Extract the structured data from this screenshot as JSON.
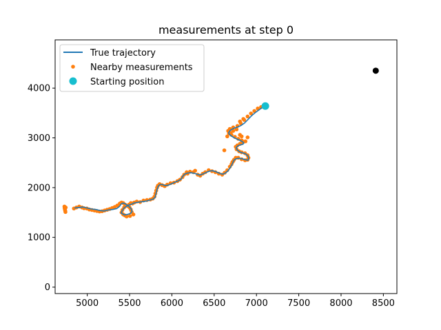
{
  "chart_data": {
    "type": "scatter",
    "title": "measurements at step 0",
    "xlabel": "",
    "ylabel": "",
    "xlim": [
      4620,
      8660
    ],
    "ylim": [
      -130,
      4970
    ],
    "x_ticks": [
      5000,
      5500,
      6000,
      6500,
      7000,
      7500,
      8000,
      8500
    ],
    "y_ticks": [
      0,
      1000,
      2000,
      3000,
      4000
    ],
    "grid": false,
    "legend_position": "top-left",
    "colors": {
      "trajectory": "#1f77b4",
      "measurements": "#ff7f0e",
      "start": "#17becf",
      "target": "#000000"
    },
    "series": [
      {
        "name": "True trajectory",
        "kind": "line",
        "x": [
          4850,
          4900,
          4950,
          5000,
          5050,
          5100,
          5150,
          5200,
          5250,
          5300,
          5350,
          5380,
          5400,
          5420,
          5440,
          5470,
          5500,
          5520,
          5530,
          5510,
          5470,
          5440,
          5420,
          5400,
          5410,
          5430,
          5460,
          5490,
          5510,
          5530,
          5550,
          5580,
          5620,
          5660,
          5700,
          5740,
          5780,
          5800,
          5810,
          5820,
          5830,
          5840,
          5860,
          5890,
          5920,
          5960,
          6000,
          6040,
          6080,
          6110,
          6130,
          6150,
          6180,
          6220,
          6260,
          6300,
          6330,
          6360,
          6400,
          6440,
          6480,
          6520,
          6560,
          6600,
          6630,
          6660,
          6690,
          6710,
          6720,
          6730,
          6740,
          6760,
          6790,
          6830,
          6870,
          6900,
          6910,
          6900,
          6870,
          6830,
          6800,
          6770,
          6760,
          6780,
          6810,
          6840,
          6850,
          6830,
          6790,
          6750,
          6710,
          6680,
          6670,
          6690,
          6730,
          6780,
          6820,
          6860,
          6900,
          6940,
          6980,
          7020,
          7060,
          7100
        ],
        "y": [
          1590,
          1600,
          1610,
          1590,
          1570,
          1560,
          1540,
          1530,
          1550,
          1560,
          1580,
          1620,
          1670,
          1690,
          1680,
          1650,
          1610,
          1570,
          1520,
          1480,
          1460,
          1450,
          1470,
          1490,
          1530,
          1580,
          1620,
          1650,
          1660,
          1670,
          1690,
          1700,
          1710,
          1720,
          1730,
          1750,
          1770,
          1800,
          1860,
          1930,
          1990,
          2030,
          2060,
          2060,
          2040,
          2050,
          2080,
          2110,
          2140,
          2170,
          2230,
          2270,
          2290,
          2300,
          2290,
          2270,
          2250,
          2270,
          2300,
          2330,
          2340,
          2320,
          2290,
          2270,
          2290,
          2330,
          2400,
          2460,
          2500,
          2540,
          2560,
          2580,
          2590,
          2580,
          2560,
          2550,
          2590,
          2640,
          2680,
          2700,
          2720,
          2760,
          2800,
          2840,
          2860,
          2870,
          2900,
          2930,
          2960,
          2990,
          3030,
          3070,
          3100,
          3150,
          3190,
          3220,
          3250,
          3300,
          3370,
          3440,
          3500,
          3550,
          3600,
          3640
        ]
      },
      {
        "name": "Nearby measurements",
        "kind": "scatter",
        "x": [
          4730,
          4732,
          4735,
          4737,
          4740,
          4742,
          4745,
          4842,
          4872,
          4905,
          4938,
          4962,
          4995,
          5025,
          5055,
          5085,
          5115,
          5145,
          5175,
          5205,
          5235,
          5265,
          5295,
          5325,
          5355,
          5385,
          5405,
          5425,
          5445,
          5475,
          5500,
          5515,
          5525,
          5545,
          5505,
          5465,
          5445,
          5425,
          5405,
          5415,
          5435,
          5465,
          5495,
          5515,
          5535,
          5555,
          5585,
          5625,
          5665,
          5705,
          5745,
          5775,
          5795,
          5805,
          5815,
          5825,
          5835,
          5855,
          5885,
          5915,
          5945,
          5985,
          6025,
          6065,
          6095,
          6125,
          6145,
          6175,
          6185,
          6215,
          6255,
          6275,
          6305,
          6335,
          6365,
          6395,
          6435,
          6475,
          6515,
          6555,
          6595,
          6625,
          6655,
          6685,
          6705,
          6715,
          6725,
          6735,
          6755,
          6785,
          6825,
          6865,
          6895,
          6905,
          6895,
          6865,
          6825,
          6795,
          6765,
          6755,
          6775,
          6805,
          6835,
          6845,
          6825,
          6785,
          6745,
          6705,
          6675,
          6665,
          6685,
          6725,
          6775,
          6815,
          6855,
          6895,
          6935,
          6975,
          7015,
          7055,
          7085,
          6620,
          6655,
          6695,
          6725,
          6765,
          6805,
          6845,
          6805,
          6825,
          6870,
          6895
        ],
        "y": [
          1620,
          1590,
          1570,
          1550,
          1530,
          1510,
          1600,
          1580,
          1600,
          1620,
          1600,
          1585,
          1580,
          1560,
          1550,
          1540,
          1530,
          1520,
          1525,
          1540,
          1555,
          1570,
          1590,
          1610,
          1640,
          1680,
          1700,
          1690,
          1660,
          1630,
          1600,
          1560,
          1510,
          1460,
          1430,
          1420,
          1440,
          1460,
          1500,
          1550,
          1600,
          1640,
          1660,
          1690,
          1680,
          1700,
          1720,
          1710,
          1740,
          1750,
          1760,
          1780,
          1820,
          1880,
          1940,
          2000,
          2040,
          2070,
          2050,
          2030,
          2060,
          2090,
          2100,
          2130,
          2160,
          2210,
          2260,
          2310,
          2280,
          2320,
          2310,
          2340,
          2260,
          2240,
          2280,
          2310,
          2350,
          2330,
          2310,
          2280,
          2260,
          2300,
          2350,
          2420,
          2470,
          2510,
          2530,
          2560,
          2600,
          2600,
          2570,
          2550,
          2560,
          2600,
          2650,
          2690,
          2710,
          2730,
          2770,
          2820,
          2850,
          2880,
          2910,
          2920,
          2950,
          2980,
          3020,
          3060,
          3090,
          3140,
          3180,
          3210,
          3240,
          3290,
          3360,
          3430,
          3490,
          3540,
          3590,
          3620,
          3650,
          2750,
          3030,
          3100,
          3140,
          3170,
          3330,
          3380,
          3060,
          3030,
          2930,
          3010
        ]
      },
      {
        "name": "Starting position",
        "kind": "point",
        "x": [
          7105
        ],
        "y": [
          3640
        ]
      },
      {
        "name": "",
        "kind": "point",
        "x": [
          8410
        ],
        "y": [
          4350
        ]
      }
    ]
  }
}
